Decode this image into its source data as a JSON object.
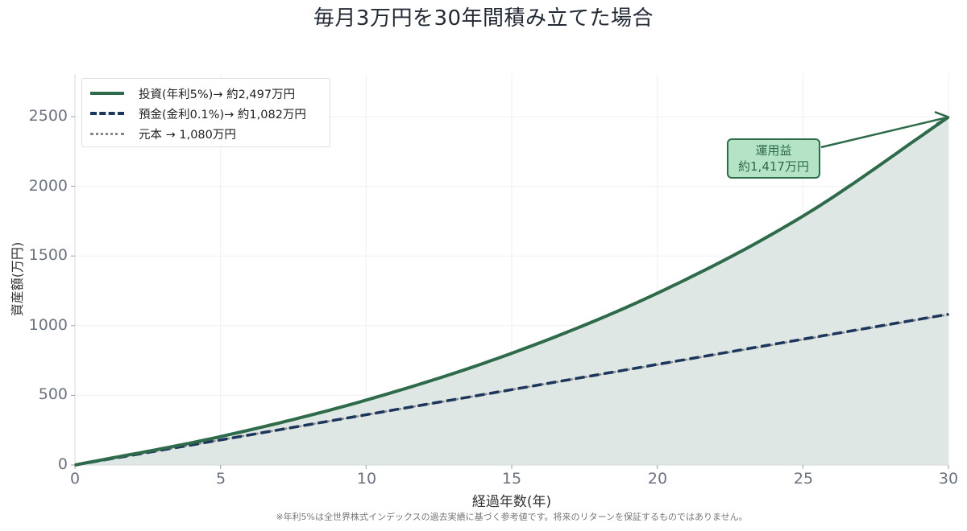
{
  "title": "毎月3万円を30年間積み立てた場合",
  "axes": {
    "xlabel": "経過年数(年)",
    "ylabel": "資産額(万円)",
    "xticks": [
      "0",
      "5",
      "10",
      "15",
      "20",
      "25",
      "30"
    ],
    "yticks": [
      "0",
      "500",
      "1000",
      "1500",
      "2000",
      "2500"
    ]
  },
  "legend": {
    "items": [
      {
        "label": "投資(年利5%)→ 約2,497万円",
        "color": "#2e6b4a",
        "style": "solid"
      },
      {
        "label": "預金(金利0.1%)→ 約1,082万円",
        "color": "#1b365d",
        "style": "dashed"
      },
      {
        "label": "元本 → 1,080万円",
        "color": "#888888",
        "style": "dotted"
      }
    ]
  },
  "annotation": {
    "line1": "運用益",
    "line2": "約1,417万円",
    "bg": "#b4e3c5",
    "border": "#2e6b4a"
  },
  "footnote": "※年利5%は全世界株式インデックスの過去実績に基づく参考値です。将来のリターンを保証するものではありません。",
  "colors": {
    "investment": "#2e6b4a",
    "deposit": "#1b365d",
    "principal": "#888888",
    "fill": "#dfe7e4"
  },
  "chart_data": {
    "type": "line",
    "title": "毎月3万円を30年間積み立てた場合",
    "xlabel": "経過年数(年)",
    "ylabel": "資産額(万円)",
    "xlim": [
      0,
      30
    ],
    "ylim": [
      0,
      2800
    ],
    "grid": true,
    "legend_position": "upper left",
    "x": [
      0,
      5,
      10,
      15,
      20,
      25,
      30
    ],
    "series": [
      {
        "name": "投資(年利5%)→ 約2,497万円",
        "values": [
          0,
          204,
          466,
          802,
          1233,
          1786,
          2497
        ]
      },
      {
        "name": "預金(金利0.1%)→ 約1,082万円",
        "values": [
          0,
          180,
          361,
          541,
          722,
          903,
          1082
        ]
      },
      {
        "name": "元本 → 1,080万円",
        "values": [
          0,
          180,
          360,
          540,
          720,
          900,
          1080
        ]
      }
    ],
    "annotations": [
      {
        "text": "運用益 約1,417万円",
        "xy": [
          30,
          2497
        ]
      }
    ],
    "footnote": "※年利5%は全世界株式インデックスの過去実績に基づく参考値です。将来のリターンを保証するものではありません。"
  }
}
